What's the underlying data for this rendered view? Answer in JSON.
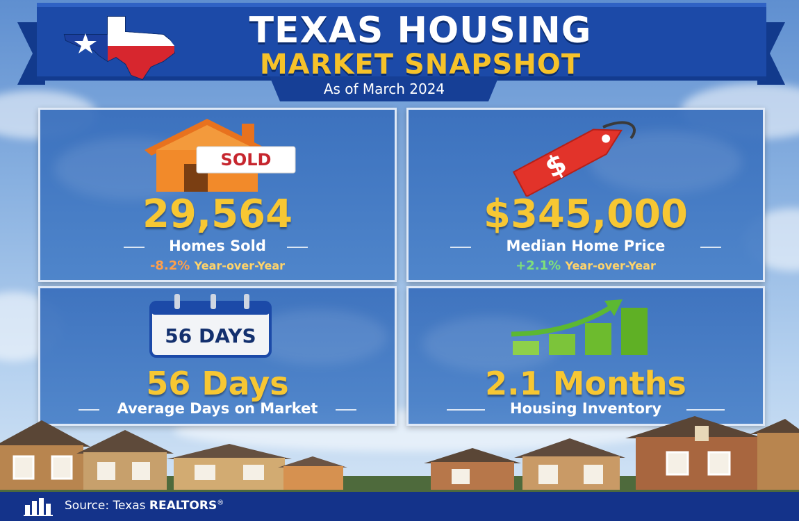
{
  "header": {
    "title_line1": "TEXAS HOUSING",
    "title_line2": "MARKET SNAPSHOT",
    "as_of": "As of March 2024"
  },
  "cards": {
    "homes_sold": {
      "icon": "sold-house-icon",
      "sign_text": "SOLD",
      "value": "29,564",
      "label": "Homes Sold",
      "change": "-8.2%",
      "change_suffix": "Year-over-Year"
    },
    "median_price": {
      "icon": "price-tag-icon",
      "tag_text": "$",
      "value": "$345,000",
      "label": "Median Home Price",
      "change": "+2.1%",
      "change_suffix": "Year-over-Year"
    },
    "days_on_market": {
      "icon": "calendar-icon",
      "calendar_text": "56 DAYS",
      "value": "56 Days",
      "label": "Average Days on Market"
    },
    "inventory": {
      "icon": "bar-chart-up-icon",
      "value": "2.1 Months",
      "label": "Housing Inventory"
    }
  },
  "footer": {
    "source_prefix": "Source: Texas ",
    "source_brand": "REALTORS",
    "registered_mark": "®"
  },
  "colors": {
    "banner_blue": "#1c4aa8",
    "title_gold": "#f7c733",
    "negative": "#ff9f4a",
    "positive": "#7ee07a",
    "footer_blue": "#14338a"
  }
}
